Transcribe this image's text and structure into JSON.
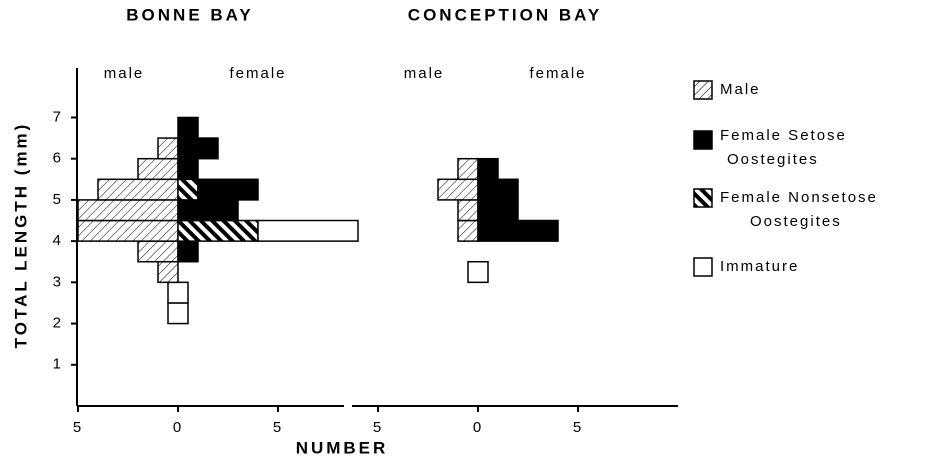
{
  "chart_data": {
    "type": "pyramid",
    "y_label": "TOTAL LENGTH (mm)",
    "x_label": "NUMBER",
    "bins": [
      2,
      2.5,
      3,
      3.5,
      4,
      4.5,
      5,
      5.5,
      6,
      6.5,
      7
    ],
    "ylim": [
      0,
      8.2
    ],
    "yticks": [
      1,
      2,
      3,
      4,
      5,
      6,
      7
    ],
    "series": [
      {
        "name": "Male",
        "color": "#000000",
        "pattern": "hatch",
        "side": "left"
      },
      {
        "name": "Female Nonsetose Oostegites",
        "color": "#000000",
        "pattern": "bold-hatch",
        "side": "right"
      },
      {
        "name": "Female Setose Oostegites",
        "color": "#000000",
        "pattern": "solid",
        "side": "right"
      },
      {
        "name": "Immature",
        "color": "#000000",
        "pattern": "open",
        "side": "right"
      }
    ],
    "legend_order": [
      0,
      2,
      1,
      3
    ],
    "panels": [
      {
        "title": "BONNE BAY",
        "left_label": "male",
        "right_label": "female",
        "xlim": [
          -5,
          8.3
        ],
        "xticks": [
          {
            "value": -5,
            "label": "5"
          },
          0,
          5
        ],
        "values": [
          [
            0,
            0,
            1,
            2,
            5,
            5,
            4,
            2,
            1,
            0
          ],
          [
            0,
            0,
            0,
            0,
            4,
            0,
            1,
            0,
            0,
            0
          ],
          [
            0,
            0,
            0,
            1,
            0,
            3,
            3,
            1,
            2,
            1
          ],
          [
            1,
            1,
            0,
            0,
            5,
            0,
            0,
            0,
            0,
            0
          ]
        ]
      },
      {
        "title": "CONCEPTION BAY",
        "left_label": "male",
        "right_label": "female",
        "xlim": [
          -6.3,
          10
        ],
        "xticks": [
          {
            "value": -5,
            "label": "5"
          },
          0,
          5
        ],
        "values": [
          [
            0,
            0,
            0,
            0,
            1,
            1,
            2,
            1,
            0,
            0
          ],
          [
            0,
            0,
            0,
            0,
            0,
            0,
            0,
            0,
            0,
            0
          ],
          [
            0,
            0,
            0,
            0,
            4,
            2,
            2,
            1,
            0,
            0
          ],
          [
            0,
            0,
            1,
            0,
            0,
            0,
            0,
            0,
            0,
            0
          ]
        ]
      }
    ]
  }
}
